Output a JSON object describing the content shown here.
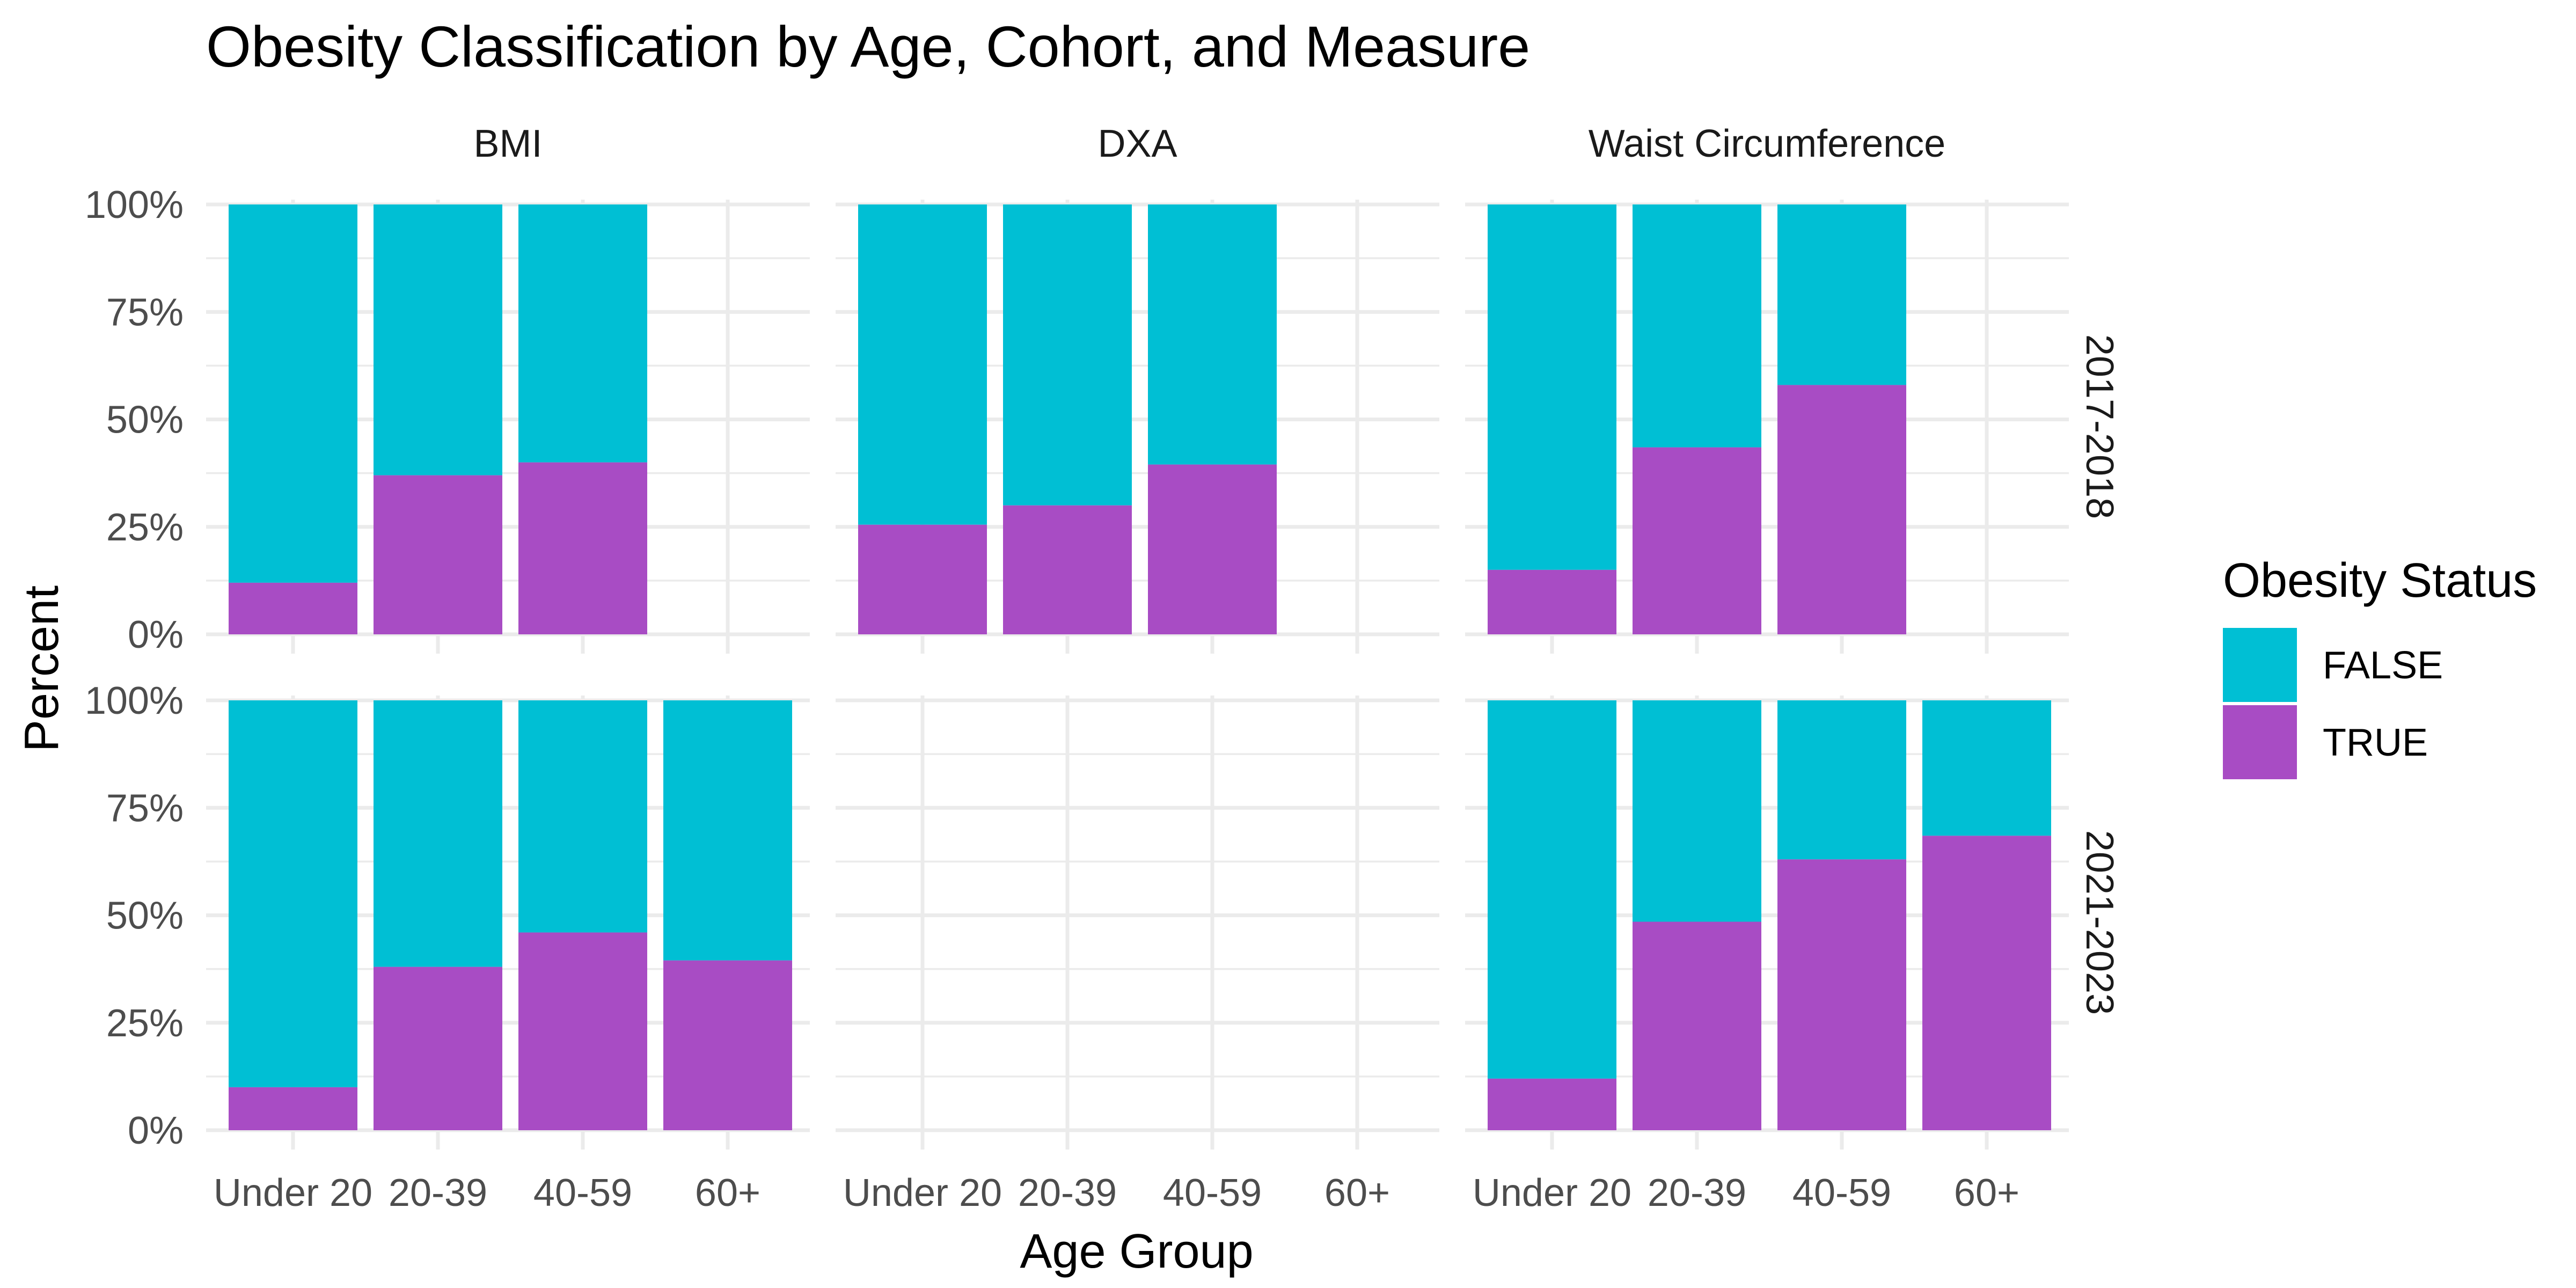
{
  "chart_data": {
    "type": "bar",
    "stacked": true,
    "title": "Obesity Classification by Age, Cohort, and Measure",
    "xlabel": "Age Group",
    "ylabel": "Percent",
    "ylim": [
      0,
      100
    ],
    "y_ticks": [
      "0%",
      "25%",
      "50%",
      "75%",
      "100%"
    ],
    "y_tick_values": [
      0,
      25,
      50,
      75,
      100
    ],
    "categories": [
      "Under 20",
      "20-39",
      "40-59",
      "60+"
    ],
    "columns": [
      "BMI",
      "DXA",
      "Waist Circumference"
    ],
    "rows": [
      "2017-2018",
      "2021-2023"
    ],
    "legend": {
      "title": "Obesity Status",
      "position": "right",
      "entries": [
        {
          "name": "FALSE",
          "color": "#00BFD4"
        },
        {
          "name": "TRUE",
          "color": "#A84CC4"
        }
      ]
    },
    "panels": [
      {
        "row": "2017-2018",
        "column": "BMI",
        "true_pct": [
          12,
          37,
          40,
          null
        ],
        "false_pct": [
          88,
          63,
          60,
          null
        ]
      },
      {
        "row": "2017-2018",
        "column": "DXA",
        "true_pct": [
          25.5,
          30,
          39.5,
          null
        ],
        "false_pct": [
          74.5,
          70,
          60.5,
          null
        ]
      },
      {
        "row": "2017-2018",
        "column": "Waist Circumference",
        "true_pct": [
          15,
          43.5,
          58,
          null
        ],
        "false_pct": [
          85,
          56.5,
          42,
          null
        ]
      },
      {
        "row": "2021-2023",
        "column": "BMI",
        "true_pct": [
          10,
          38,
          46,
          39.5
        ],
        "false_pct": [
          90,
          62,
          54,
          60.5
        ]
      },
      {
        "row": "2021-2023",
        "column": "DXA",
        "true_pct": [
          null,
          null,
          null,
          null
        ],
        "false_pct": [
          null,
          null,
          null,
          null
        ]
      },
      {
        "row": "2021-2023",
        "column": "Waist Circumference",
        "true_pct": [
          12,
          48.5,
          63,
          68.5
        ],
        "false_pct": [
          88,
          51.5,
          37,
          31.5
        ]
      }
    ],
    "grid": true
  }
}
